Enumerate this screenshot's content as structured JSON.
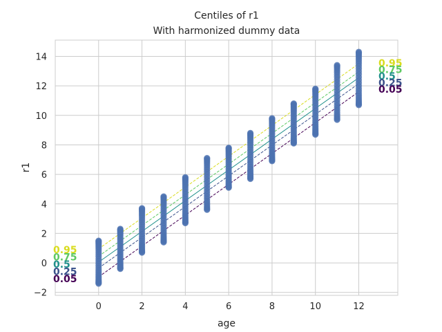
{
  "chart_data": {
    "type": "scatter",
    "title": "Centiles of r1",
    "subtitle": "With harmonized dummy data",
    "xlabel": "age",
    "ylabel": "r1",
    "xlim": [
      -2.0,
      13.8
    ],
    "ylim": [
      -2.2,
      15.1
    ],
    "xticks": [
      0,
      2,
      4,
      6,
      8,
      10,
      12
    ],
    "yticks": [
      -2,
      0,
      2,
      4,
      6,
      8,
      10,
      12,
      14
    ],
    "grid": true,
    "point_color": "#4c72b0",
    "scatter": [
      {
        "x": 0,
        "ymin": -1.4,
        "ymax": 1.5
      },
      {
        "x": 1,
        "ymin": -0.4,
        "ymax": 2.3
      },
      {
        "x": 2,
        "ymin": 0.7,
        "ymax": 3.7
      },
      {
        "x": 3,
        "ymin": 1.4,
        "ymax": 4.5
      },
      {
        "x": 4,
        "ymin": 2.7,
        "ymax": 5.8
      },
      {
        "x": 5,
        "ymin": 3.6,
        "ymax": 7.1
      },
      {
        "x": 6,
        "ymin": 5.1,
        "ymax": 7.8
      },
      {
        "x": 7,
        "ymin": 5.7,
        "ymax": 8.8
      },
      {
        "x": 8,
        "ymin": 6.9,
        "ymax": 9.8
      },
      {
        "x": 9,
        "ymin": 8.1,
        "ymax": 10.8
      },
      {
        "x": 10,
        "ymin": 8.7,
        "ymax": 11.8
      },
      {
        "x": 11,
        "ymin": 9.7,
        "ymax": 13.4
      },
      {
        "x": 12,
        "ymin": 10.7,
        "ymax": 14.3
      }
    ],
    "centiles": [
      {
        "label": "0.05",
        "color": "#440154",
        "dash": true,
        "y0": -0.95,
        "y12": 11.6
      },
      {
        "label": "0.25",
        "color": "#3b528b",
        "dash": true,
        "y0": -0.35,
        "y12": 12.15
      },
      {
        "label": "0.5",
        "color": "#21918c",
        "dash": false,
        "y0": 0.05,
        "y12": 12.55
      },
      {
        "label": "0.75",
        "color": "#5ec962",
        "dash": true,
        "y0": 0.45,
        "y12": 12.95
      },
      {
        "label": "0.95",
        "color": "#d9dc1f",
        "dash": true,
        "y0": 0.95,
        "y12": 13.5
      }
    ]
  }
}
